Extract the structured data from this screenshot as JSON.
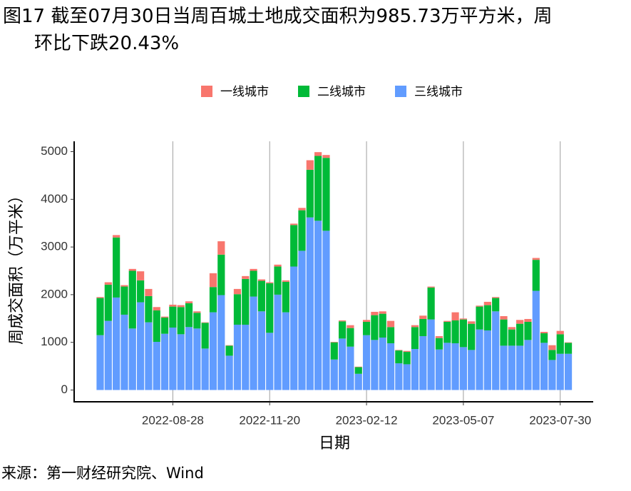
{
  "title": {
    "line1": "图17 截至07月30日当周百城土地成交面积为985.73万平方米，周",
    "line2": "环比下跌20.43%"
  },
  "source": "来源：第一财经研究院、Wind",
  "colors": {
    "tier1": "#F8766D",
    "tier2": "#00BA38",
    "tier3": "#619CFF",
    "gridline": "#9e9e9e",
    "axis": "#000000"
  },
  "chart_data": {
    "type": "bar",
    "stacked": true,
    "xlabel": "日期",
    "ylabel": "周成交面积（万平米）",
    "ylim": [
      0,
      5300
    ],
    "yticks": [
      0,
      1000,
      2000,
      3000,
      4000,
      5000
    ],
    "xtick_labels": [
      "2022-08-28",
      "2022-11-20",
      "2023-02-12",
      "2023-05-07",
      "2023-07-30"
    ],
    "xtick_indices": [
      9,
      21,
      33,
      45,
      57
    ],
    "legend": {
      "position": "top",
      "entries": [
        "一线城市",
        "二线城市",
        "三线城市"
      ]
    },
    "series": [
      {
        "name": "三线城市",
        "values": [
          1150,
          1450,
          1940,
          1580,
          1290,
          1840,
          1420,
          1010,
          1180,
          1310,
          1170,
          1320,
          1290,
          870,
          1630,
          1990,
          720,
          1370,
          1370,
          1960,
          1650,
          1200,
          2000,
          1630,
          2590,
          2920,
          3620,
          3550,
          3340,
          640,
          1080,
          910,
          340,
          1150,
          1050,
          1100,
          980,
          560,
          540,
          860,
          1130,
          1480,
          850,
          990,
          980,
          900,
          840,
          1270,
          1250,
          1650,
          930,
          930,
          930,
          1050,
          2080,
          990,
          630,
          760,
          760
        ]
      },
      {
        "name": "二线城市",
        "values": [
          780,
          760,
          1260,
          590,
          1210,
          460,
          550,
          660,
          340,
          440,
          570,
          500,
          330,
          540,
          530,
          850,
          210,
          640,
          960,
          540,
          640,
          1040,
          590,
          640,
          870,
          850,
          1000,
          1360,
          1530,
          360,
          360,
          390,
          140,
          280,
          520,
          500,
          340,
          270,
          260,
          460,
          360,
          670,
          240,
          440,
          480,
          580,
          550,
          480,
          530,
          280,
          550,
          340,
          460,
          380,
          650,
          200,
          210,
          410,
          230
        ]
      },
      {
        "name": "一线城市",
        "values": [
          20,
          50,
          50,
          30,
          40,
          190,
          150,
          70,
          20,
          40,
          40,
          40,
          30,
          10,
          290,
          280,
          10,
          110,
          60,
          40,
          30,
          20,
          40,
          30,
          30,
          50,
          200,
          80,
          60,
          10,
          20,
          60,
          10,
          40,
          70,
          50,
          130,
          10,
          20,
          40,
          70,
          20,
          40,
          20,
          170,
          20,
          50,
          20,
          70,
          20,
          70,
          50,
          80,
          60,
          40,
          30,
          100,
          70,
          10
        ]
      }
    ]
  }
}
